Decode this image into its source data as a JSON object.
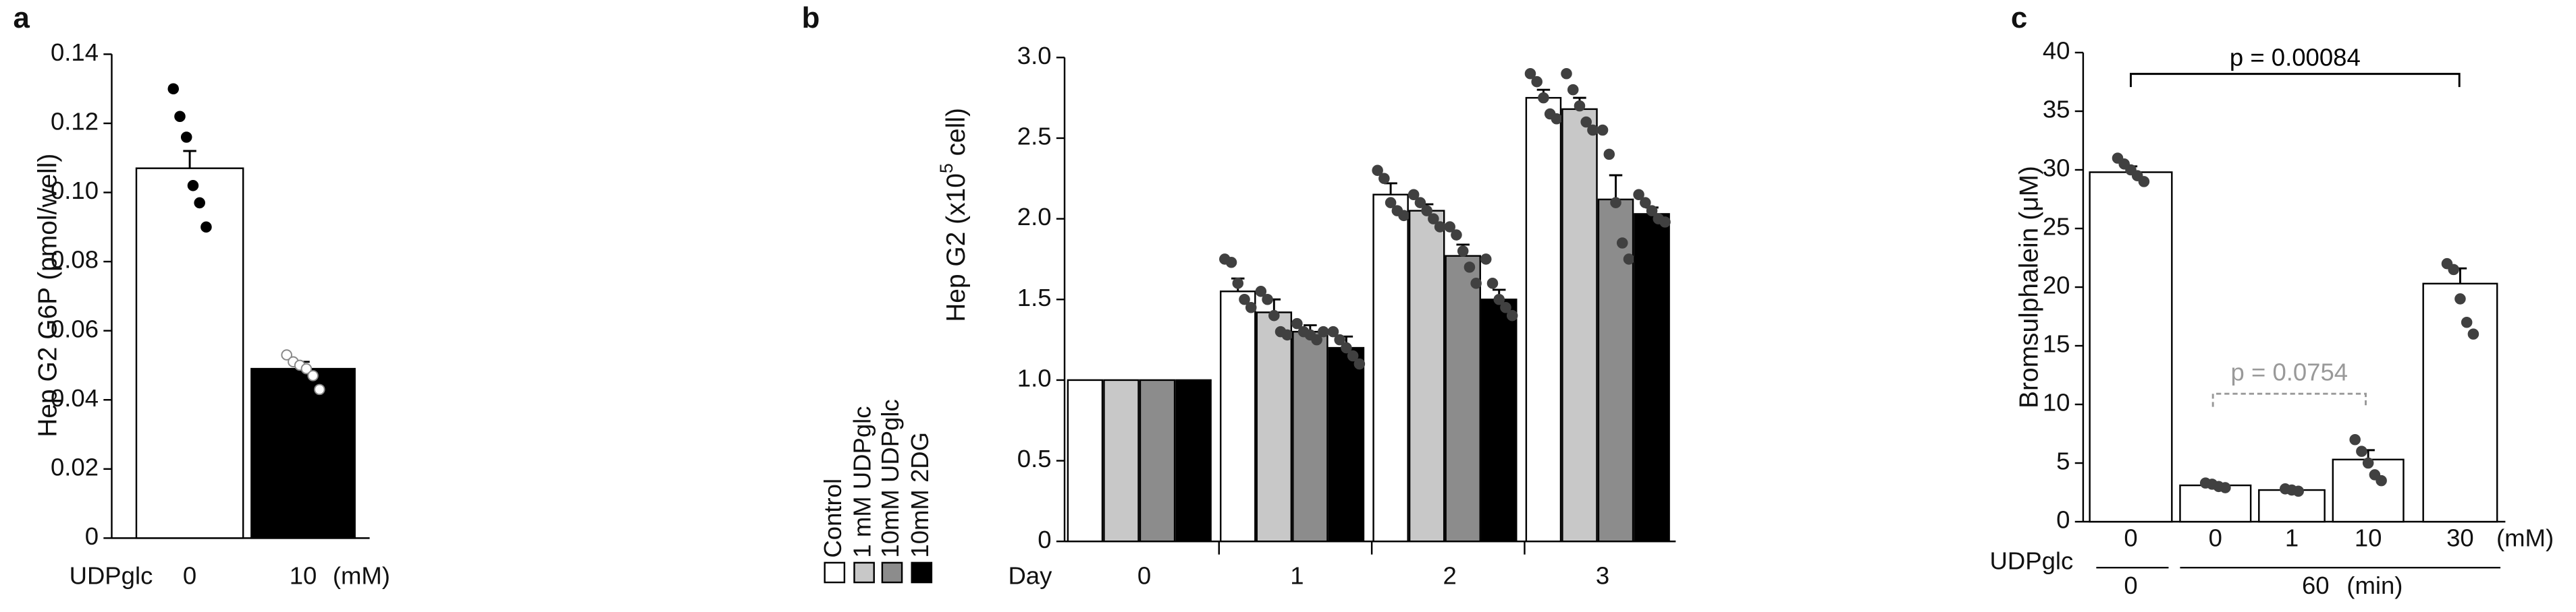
{
  "chart_data": [
    {
      "type": "bar",
      "panel_label": "a",
      "y_label": "Hep G2 G6P (pmol/well)",
      "x_row_label": "UDPglc",
      "x_unit": "(mM)",
      "categories": [
        "0",
        "10"
      ],
      "values": [
        0.107,
        0.049
      ],
      "errors": [
        0.005,
        0.002
      ],
      "colors": [
        "#ffffff",
        "#000000"
      ],
      "points": [
        [
          0.13,
          0.122,
          0.116,
          0.102,
          0.097,
          0.09
        ],
        [
          0.053,
          0.051,
          0.05,
          0.049,
          0.047,
          0.043
        ]
      ],
      "point_colors": [
        "#000000",
        "#ffffff"
      ],
      "ylim": [
        0,
        0.14
      ],
      "yticks": [
        0,
        0.02,
        0.04,
        0.06,
        0.08,
        {
          "value": 0.1,
          "label": "0.10"
        },
        0.12,
        0.14
      ]
    },
    {
      "type": "bar",
      "panel_label": "b",
      "y_label": [
        "Hep G2 (x10",
        "5",
        " cell)"
      ],
      "x_label": "Day",
      "categories": [
        "0",
        "1",
        "2",
        "3"
      ],
      "point_color": "#404040",
      "series": [
        {
          "name": "Control",
          "color": "#ffffff",
          "values": [
            1.0,
            1.55,
            2.15,
            2.75
          ],
          "errors": [
            0,
            0.08,
            0.07,
            0.05
          ],
          "points": [
            [],
            [
              1.75,
              1.73,
              1.6,
              1.5,
              1.45
            ],
            [
              2.3,
              2.25,
              2.1,
              2.05,
              2.02
            ],
            [
              2.9,
              2.85,
              2.75,
              2.65,
              2.62
            ]
          ]
        },
        {
          "name": "1 mM UDPglc",
          "color": "#c8c8c8",
          "values": [
            1.0,
            1.42,
            2.05,
            2.68
          ],
          "errors": [
            0,
            0.08,
            0.04,
            0.07
          ],
          "points": [
            [],
            [
              1.55,
              1.5,
              1.4,
              1.3,
              1.28
            ],
            [
              2.15,
              2.1,
              2.05,
              2.0,
              1.95
            ],
            [
              2.9,
              2.8,
              2.7,
              2.6,
              2.55
            ]
          ]
        },
        {
          "name": "10mM UDPglc",
          "color": "#8c8c8c",
          "values": [
            1.0,
            1.3,
            1.77,
            2.12
          ],
          "errors": [
            0,
            0.04,
            0.07,
            0.15
          ],
          "points": [
            [],
            [
              1.35,
              1.3,
              1.28,
              1.25,
              1.3
            ],
            [
              1.95,
              1.9,
              1.8,
              1.7,
              1.6
            ],
            [
              2.55,
              2.4,
              2.1,
              1.85,
              1.75
            ]
          ]
        },
        {
          "name": "10mM 2DG",
          "color": "#000000",
          "values": [
            1.0,
            1.2,
            1.5,
            2.03
          ],
          "errors": [
            0,
            0.07,
            0.06,
            0.04
          ],
          "points": [
            [],
            [
              1.3,
              1.25,
              1.2,
              1.15,
              1.1
            ],
            [
              1.75,
              1.6,
              1.5,
              1.45,
              1.4
            ],
            [
              2.15,
              2.1,
              2.05,
              2.0,
              1.98
            ]
          ]
        }
      ],
      "ylim": [
        0,
        3
      ],
      "yticks": [
        0,
        0.5,
        {
          "value": 1,
          "label": "1.0"
        },
        1.5,
        {
          "value": 2,
          "label": "2.0"
        },
        2.5,
        {
          "value": 3,
          "label": "3.0"
        }
      ]
    },
    {
      "type": "bar",
      "panel_label": "c",
      "y_label": "Bromsulphalein (μM)",
      "x_row_label": "UDPglc",
      "x_unit": "(mM)",
      "categories": [
        "0",
        "0",
        "1",
        "10",
        "30"
      ],
      "time_labels": [
        "0",
        "60"
      ],
      "time_unit": "(min)",
      "values": [
        29.8,
        3.1,
        2.7,
        5.3,
        20.3
      ],
      "errors": [
        0.5,
        0.2,
        0.15,
        0.8,
        1.3
      ],
      "colors": [
        "#ffffff",
        "#ffffff",
        "#ffffff",
        "#ffffff",
        "#ffffff"
      ],
      "points": [
        [
          31,
          30.5,
          30,
          29.5,
          29
        ],
        [
          3.3,
          3.2,
          3.0,
          2.9
        ],
        [
          2.8,
          2.7,
          2.6
        ],
        [
          7,
          6,
          5,
          4,
          3.5
        ],
        [
          22,
          21.5,
          19,
          17,
          16
        ]
      ],
      "point_color": "#404040",
      "annotations": [
        {
          "text": "p = 0.00084",
          "color": "#000000"
        },
        {
          "text": "p = 0.0754",
          "color": "#999999"
        }
      ],
      "ylim": [
        0,
        40
      ],
      "yticks": [
        0,
        5,
        10,
        15,
        20,
        25,
        30,
        35,
        40
      ]
    }
  ]
}
